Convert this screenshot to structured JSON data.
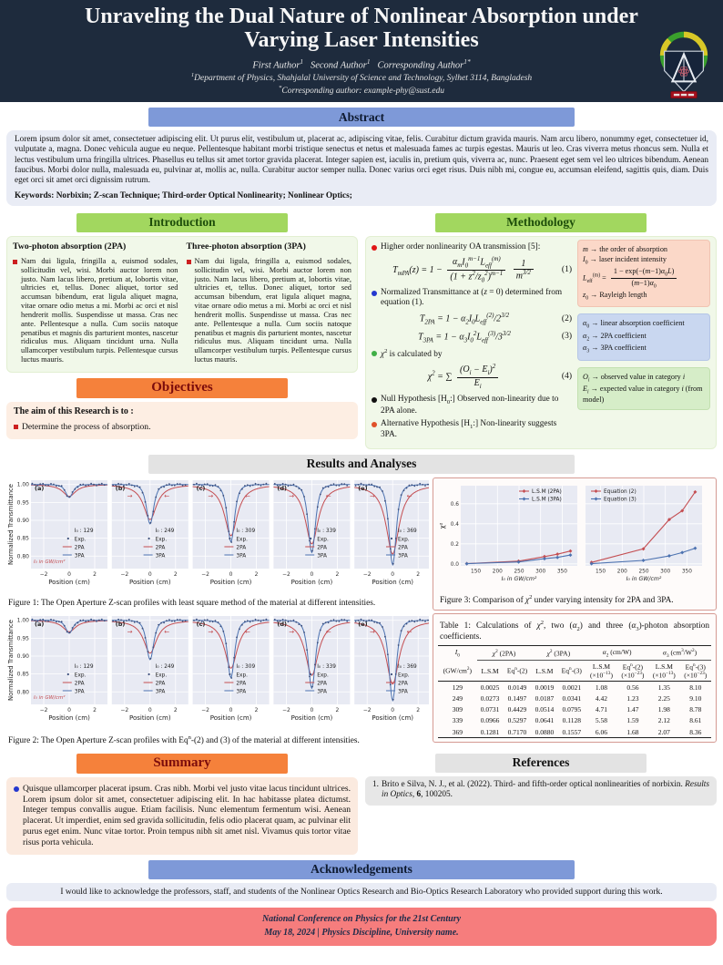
{
  "colors": {
    "banner_navy": "#1e2b3d",
    "header_blue": "#7e99d8",
    "header_green": "#a2d75f",
    "header_orange": "#f5813b",
    "header_gray": "#e3e3e3",
    "footer_red": "#f67d7d",
    "bullet_red": "#cc2020",
    "curve_2pa": "#c44e52",
    "curve_3pa": "#4c72b0",
    "exp_dot": "#3d4f7c",
    "box_pink": "#fbd8c8",
    "box_blue": "#c9d7f0",
    "box_green": "#d6edc8"
  },
  "header": {
    "title": "Unraveling the Dual Nature of Nonlinear Absorption under Varying Laser Intensities",
    "authors_html": "First Author<sup>1</sup>&nbsp;&nbsp;&nbsp;Second Author<sup>1</sup>&nbsp;&nbsp;&nbsp;Corresponding Author<sup>1*</sup>",
    "affiliation_html": "<sup>1</sup>Department of Physics, Shahjalal University of Science and Technology, Sylhet 3114, Bangladesh",
    "email_html": "<sup>*</sup>Corresponding author: example-phy@sust.edu"
  },
  "abstract": {
    "heading": "Abstract",
    "body": "Lorem ipsum dolor sit amet, consectetuer adipiscing elit. Ut purus elit, vestibulum ut, placerat ac, adipiscing vitae, felis. Curabitur dictum gravida mauris. Nam arcu libero, nonummy eget, consectetuer id, vulputate a, magna. Donec vehicula augue eu neque. Pellentesque habitant morbi tristique senectus et netus et malesuada fames ac turpis egestas. Mauris ut leo. Cras viverra metus rhoncus sem. Nulla et lectus vestibulum urna fringilla ultrices. Phasellus eu tellus sit amet tortor gravida placerat. Integer sapien est, iaculis in, pretium quis, viverra ac, nunc. Praesent eget sem vel leo ultrices bibendum. Aenean faucibus. Morbi dolor nulla, malesuada eu, pulvinar at, mollis ac, nulla. Curabitur auctor semper nulla. Donec varius orci eget risus. Duis nibh mi, congue eu, accumsan eleifend, sagittis quis, diam. Duis eget orci sit amet orci dignissim rutrum.",
    "keywords": "Keywords: Norbixin; Z-scan Technique; Third-order Optical Nonlinearity; Nonlinear Optics;"
  },
  "introduction": {
    "heading": "Introduction",
    "col1": {
      "title": "Two-photon absorption (2PA)",
      "text": "Nam dui ligula, fringilla a, euismod sodales, sollicitudin vel, wisi. Morbi auctor lorem non justo. Nam lacus libero, pretium at, lobortis vitae, ultricies et, tellus. Donec aliquet, tortor sed accumsan bibendum, erat ligula aliquet magna, vitae ornare odio metus a mi. Morbi ac orci et nisl hendrerit mollis. Suspendisse ut massa. Cras nec ante. Pellentesque a nulla. Cum sociis natoque penatibus et magnis dis parturient montes, nascetur ridiculus mus. Aliquam tincidunt urna. Nulla ullamcorper vestibulum turpis. Pellentesque cursus luctus mauris."
    },
    "col2": {
      "title": "Three-photon absorption (3PA)",
      "text": "Nam dui ligula, fringilla a, euismod sodales, sollicitudin vel, wisi. Morbi auctor lorem non justo. Nam lacus libero, pretium at, lobortis vitae, ultricies et, tellus. Donec aliquet, tortor sed accumsan bibendum, erat ligula aliquet magna, vitae ornare odio metus a mi. Morbi ac orci et nisl hendrerit mollis. Suspendisse ut massa. Cras nec ante. Pellentesque a nulla. Cum sociis natoque penatibus et magnis dis parturient montes, nascetur ridiculus mus. Aliquam tincidunt urna. Nulla ullamcorper vestibulum turpis. Pellentesque cursus luctus mauris."
    }
  },
  "objectives": {
    "heading": "Objectives",
    "lead": "The aim of this Research is to :",
    "items": [
      "Determine the process of absorption."
    ]
  },
  "methodology": {
    "heading": "Methodology",
    "b1": "Higher order nonlinearity OA transmission [5]:",
    "eq1_lhs": "<i>T<sub>mPA</sub></i>(<i>z</i>) = 1 −",
    "eq1_num": "<i>α<sub>m</sub></i><i>I</i><sub>0</sub><sup><i>m</i>−1</sup><i>L</i><sub>eff</sub><sup>(<i>m</i>)</sup>",
    "eq1_den": "(1 + <i>z</i><sup>2</sup>/<i>z</i><sub>0</sub><sup>2</sup>)<sup><i>m</i>−1</sup>",
    "eq1_num2": "1",
    "eq1_den2": "<i>m</i><sup>3/2</sup>",
    "eq1_no": "(1)",
    "b2": "Normalized Transmittance at (<i>z</i> = 0) determined from equation (1).",
    "eq2": "<i>T</i><sub>2PA</sub> = 1 − <i>α</i><sub>2</sub><i>I</i><sub>0</sub><i>L</i><sub>eff</sub><sup>(2)</sup>/2<sup>3/2</sup>",
    "eq2_no": "(2)",
    "eq3": "<i>T</i><sub>3PA</sub> = 1 − <i>α</i><sub>3</sub><i>I</i><sub>0</sub><sup>2</sup><i>L</i><sub>eff</sub><sup>(3)</sup>/3<sup>3/2</sup>",
    "eq3_no": "(3)",
    "b3": "<i>χ</i><sup>2</sup> is calculated by",
    "eq4_lhs": "<i>χ</i><sup>2</sup> = ∑",
    "eq4_num": "(<i>O<sub>i</sub></i> − <i>E<sub>i</sub></i>)<sup>2</sup>",
    "eq4_den": "<i>E<sub>i</sub></i>",
    "eq4_no": "(4)",
    "b4": "Null Hypothesis [H<sub>0</sub>:] Observed non-linearity due to 2PA alone.",
    "b5": "Alternative Hypothesis [H<sub>1</sub>:] Non-linearity suggests 3PA.",
    "box_pink": [
      "<i>m</i> → the order of absorption",
      "<i>I</i><sub>0</sub> → laser incident intensity",
      "<i>L</i><sub>eff</sub><sup>(m)</sup> = <span class='frac'><span class='fnum'>1 − exp(−(<i>m</i>−1)<i>α</i><sub>0</sub><i>L</i>)</span><span class='fden'>(<i>m</i>−1)<i>α</i><sub>0</sub></span></span>",
      "<i>z</i><sub>0</sub> → Rayleigh length"
    ],
    "box_blue": [
      "<i>α</i><sub>0</sub> → linear absorption coefficient",
      "<i>α</i><sub>2</sub> → 2PA coefficient",
      "<i>α</i><sub>3</sub> → 3PA coefficient"
    ],
    "box_green": [
      "<i>O<sub>i</sub></i> → observed value in category <i>i</i>",
      "<i>E<sub>i</sub></i> → expected value in category <i>i</i> (from model)"
    ]
  },
  "results": {
    "heading": "Results and Analyses"
  },
  "figures": {
    "fig1": {
      "caption": "Figure 1: The Open Aperture Z-scan profiles with least square method of the material at different intensities."
    },
    "fig2": {
      "caption_html": "Figure 2: The Open Aperture Z-scan profiles with Eq<sup>n</sup>-(2) and (3) of the material at different intensities."
    },
    "fig3": {
      "caption_html": "Figure 3: Comparison of <i>χ</i><sup>2</sup> under varying intensity for 2PA and 3PA."
    }
  },
  "table": {
    "caption_html": "Table 1: Calculations of <i>χ</i><sup>2</sup>, two (<i>α</i><sub>2</sub>) and three (<i>α</i><sub>3</sub>)-photon absorption coefficients.",
    "groups": [
      {
        "label": "<i>I</i><sub>0</sub>",
        "span": 1
      },
      {
        "label": "<i>χ</i><sup>2</sup> (2PA)",
        "span": 2
      },
      {
        "label": "<i>χ</i><sup>2</sup> (3PA)",
        "span": 2
      },
      {
        "label": "<i>α</i><sub>2</sub> (cm/W)",
        "span": 2
      },
      {
        "label": "<i>α</i><sub>3</sub> (cm<sup>3</sup>/W<sup>2</sup>)",
        "span": 2
      }
    ],
    "subheaders": [
      "(GW/cm<sup>2</sup>)",
      "L.S.M",
      "Eq<sup>n</sup>-(2)",
      "L.S.M",
      "Eq<sup>n</sup>-(3)",
      "L.S.M<br>(×10<sup>−13</sup>)",
      "Eq<sup>n</sup>-(2)<br>(×10<sup>−23</sup>)",
      "L.S.M<br>(×10<sup>−13</sup>)",
      "Eq<sup>n</sup>-(3)<br>(×10<sup>−23</sup>)"
    ],
    "rows": [
      [
        "129",
        "0.0025",
        "0.0149",
        "0.0019",
        "0.0021",
        "1.08",
        "0.56",
        "1.35",
        "8.10"
      ],
      [
        "249",
        "0.0273",
        "0.1497",
        "0.0187",
        "0.0341",
        "4.42",
        "1.23",
        "2.25",
        "9.10"
      ],
      [
        "309",
        "0.0731",
        "0.4429",
        "0.0514",
        "0.0795",
        "4.71",
        "1.47",
        "1.98",
        "8.78"
      ],
      [
        "339",
        "0.0966",
        "0.5297",
        "0.0641",
        "0.1128",
        "5.58",
        "1.59",
        "2.12",
        "8.61"
      ],
      [
        "369",
        "0.1281",
        "0.7170",
        "0.0880",
        "0.1557",
        "6.06",
        "1.68",
        "2.07",
        "8.36"
      ]
    ]
  },
  "summary": {
    "heading": "Summary",
    "text": "Quisque ullamcorper placerat ipsum. Cras nibh. Morbi vel justo vitae lacus tincidunt ultrices. Lorem ipsum dolor sit amet, consectetuer adipiscing elit. In hac habitasse platea dictumst. Integer tempus convallis augue. Etiam facilisis. Nunc elementum fermentum wisi. Aenean placerat. Ut imperdiet, enim sed gravida sollicitudin, felis odio placerat quam, ac pulvinar elit purus eget enim. Nunc vitae tortor. Proin tempus nibh sit amet nisl. Vivamus quis tortor vitae risus porta vehicula."
  },
  "references": {
    "heading": "References",
    "items": [
      "Brito e Silva, N. J., et al. (2022). Third- and fifth-order optical nonlinearities of norbixin. <i>Results in Optics</i>, <b>6</b>, 100205."
    ]
  },
  "acknowledgements": {
    "heading": "Acknowledgements",
    "text": "I would like to acknowledge the professors, staff, and students of the Nonlinear Optics Research and Bio-Optics Research Laboratory who provided support during this work."
  },
  "footer": {
    "line1": "National Conference on Physics for the 21st Century",
    "line2": "May 18, 2024  | Physics Discipline, University name."
  },
  "chart_data": [
    {
      "id": "figure1",
      "type": "line",
      "title": "Open Aperture Z-scan profiles (least square method)",
      "xlabel": "Position (cm)",
      "ylabel": "Normalized Transmittance",
      "xlim": [
        -3,
        3
      ],
      "ylim": [
        0.765,
        1.012
      ],
      "xticks": [
        -2,
        0,
        2
      ],
      "yticks": [
        1.0,
        0.95,
        0.9,
        0.85,
        0.8
      ],
      "legend": [
        "Exp.",
        "2PA",
        "3PA"
      ],
      "I0_prefix": "I₀ : ",
      "note": "I₀ in GW/cm²",
      "colors": {
        "PA2": "#c44e52",
        "PA3": "#4c72b0",
        "exp": "#3d4f7c"
      },
      "panels": [
        {
          "label": "(a)",
          "I0": 129,
          "min_2PA": 0.967,
          "min_3PA": 0.964
        },
        {
          "label": "(b)",
          "I0": 249,
          "min_2PA": 0.902,
          "min_3PA": 0.89
        },
        {
          "label": "(c)",
          "I0": 309,
          "min_2PA": 0.857,
          "min_3PA": 0.84
        },
        {
          "label": "(d)",
          "I0": 339,
          "min_2PA": 0.834,
          "min_3PA": 0.81
        },
        {
          "label": "(e)",
          "I0": 369,
          "min_2PA": 0.806,
          "min_3PA": 0.776
        }
      ]
    },
    {
      "id": "figure2",
      "type": "line",
      "title": "Open Aperture Z-scan profiles (Eq (2) and (3))",
      "xlabel": "Position (cm)",
      "ylabel": "Normalized Transmittance",
      "xlim": [
        -3,
        3
      ],
      "ylim": [
        0.765,
        1.012
      ],
      "xticks": [
        -2,
        0,
        2
      ],
      "yticks": [
        1.0,
        0.95,
        0.9,
        0.85,
        0.8
      ],
      "legend": [
        "Exp.",
        "2PA",
        "3PA"
      ],
      "I0_prefix": "I₀ : ",
      "note": "I₀ in GW/cm²",
      "colors": {
        "PA2": "#c44e52",
        "PA3": "#4c72b0",
        "exp": "#3d4f7c"
      },
      "panels": [
        {
          "label": "(a)",
          "I0": 129,
          "min_2PA": 0.968,
          "min_3PA": 0.964
        },
        {
          "label": "(b)",
          "I0": 249,
          "min_2PA": 0.908,
          "min_3PA": 0.89
        },
        {
          "label": "(c)",
          "I0": 309,
          "min_2PA": 0.866,
          "min_3PA": 0.84
        },
        {
          "label": "(d)",
          "I0": 339,
          "min_2PA": 0.846,
          "min_3PA": 0.81
        },
        {
          "label": "(e)",
          "I0": 369,
          "min_2PA": 0.822,
          "min_3PA": 0.776
        }
      ]
    },
    {
      "id": "figure3",
      "type": "line",
      "title": "Comparison of χ² under varying intensity",
      "xlabel": "I₀ in GW/cm²",
      "ylabel": "χ²",
      "x": [
        129,
        249,
        309,
        339,
        369
      ],
      "xticks": [
        150,
        200,
        250,
        300,
        350
      ],
      "yticks": [
        0.0,
        0.2,
        0.4,
        0.6
      ],
      "xlim": [
        115,
        385
      ],
      "ylim": [
        -0.02,
        0.78
      ],
      "panels": [
        {
          "series": [
            {
              "name": "L.S.M (2PA)",
              "color": "#c44e52",
              "values": [
                0.0025,
                0.0273,
                0.0731,
                0.0966,
                0.1281
              ]
            },
            {
              "name": "L.S.M (3PA)",
              "color": "#4c72b0",
              "values": [
                0.0019,
                0.0187,
                0.0514,
                0.0641,
                0.088
              ]
            }
          ]
        },
        {
          "series": [
            {
              "name": "Equation (2)",
              "color": "#c44e52",
              "values": [
                0.0149,
                0.1497,
                0.4429,
                0.5297,
                0.717
              ]
            },
            {
              "name": "Equation (3)",
              "color": "#4c72b0",
              "values": [
                0.0021,
                0.0341,
                0.0795,
                0.1128,
                0.1557
              ]
            }
          ]
        }
      ]
    }
  ]
}
